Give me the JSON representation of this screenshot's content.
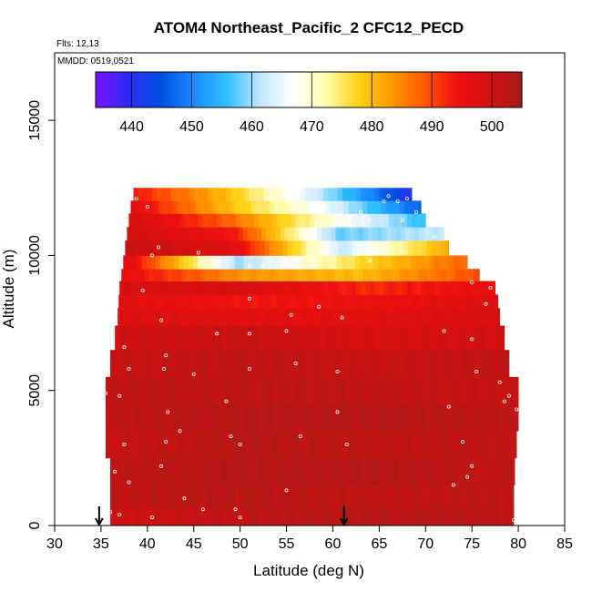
{
  "chart_data": {
    "type": "heatmap",
    "title": "ATOM4 Northeast_Pacific_2 CFC12_PECD",
    "subtitle_lines": [
      "Flts: 12,13",
      "MMDD: 0519,0521"
    ],
    "xlabel": "Latitude (deg N)",
    "ylabel": "Altitude (m)",
    "xlim": [
      30,
      85
    ],
    "ylim": [
      0,
      17500
    ],
    "xticks": [
      "30",
      "35",
      "40",
      "45",
      "50",
      "55",
      "60",
      "65",
      "70",
      "75",
      "80",
      "85"
    ],
    "xtick_values": [
      30,
      35,
      40,
      45,
      50,
      55,
      60,
      65,
      70,
      75,
      80,
      85
    ],
    "yticks": [
      "0",
      "5000",
      "10000",
      "15000"
    ],
    "ytick_values": [
      0,
      5000,
      10000,
      15000
    ],
    "colorbar": {
      "range": [
        434,
        505
      ],
      "ticks": [
        "440",
        "450",
        "460",
        "470",
        "480",
        "490",
        "500"
      ],
      "tick_values": [
        440,
        450,
        460,
        470,
        480,
        490,
        500
      ],
      "colors": [
        "#7a12ff",
        "#2b2bf0",
        "#0050e0",
        "#1a8cff",
        "#30c0ff",
        "#bfe6ff",
        "#ffffff",
        "#fffbb0",
        "#ffd21a",
        "#ff9a00",
        "#ff5a00",
        "#f01010",
        "#d41010",
        "#a61a1a"
      ]
    },
    "curtain": {
      "bins": [
        {
          "alt": 300,
          "lat_min": 36.0,
          "lat_max": 79.5,
          "values": [
            500,
            502,
            503,
            502
          ]
        },
        {
          "alt": 1000,
          "lat_min": 36.0,
          "lat_max": 79.5,
          "values": [
            502,
            503,
            502,
            502
          ]
        },
        {
          "alt": 2000,
          "lat_min": 36.0,
          "lat_max": 79.6,
          "values": [
            502,
            503,
            503,
            502
          ]
        },
        {
          "alt": 3000,
          "lat_min": 35.5,
          "lat_max": 79.8,
          "values": [
            501,
            503,
            502,
            502
          ]
        },
        {
          "alt": 4000,
          "lat_min": 35.5,
          "lat_max": 80.0,
          "values": [
            502,
            503,
            503,
            502
          ]
        },
        {
          "alt": 5000,
          "lat_min": 35.5,
          "lat_max": 80.0,
          "values": [
            502,
            502,
            502,
            501
          ]
        },
        {
          "alt": 6000,
          "lat_min": 36.0,
          "lat_max": 79.0,
          "values": [
            501,
            502,
            501,
            502
          ]
        },
        {
          "alt": 7000,
          "lat_min": 36.5,
          "lat_max": 78.5,
          "values": [
            500,
            501,
            499,
            500
          ]
        },
        {
          "alt": 7800,
          "lat_min": 36.8,
          "lat_max": 78.0,
          "values": [
            498,
            497,
            497,
            499
          ]
        },
        {
          "alt": 8300,
          "lat_min": 36.9,
          "lat_max": 77.8,
          "values": [
            497,
            494,
            495,
            498
          ]
        },
        {
          "alt": 8800,
          "lat_min": 37.0,
          "lat_max": 77.5,
          "values": [
            499,
            499,
            492,
            496
          ]
        },
        {
          "alt": 9300,
          "lat_min": 37.2,
          "lat_max": 75.8,
          "values": [
            496,
            484,
            480,
            490
          ]
        },
        {
          "alt": 9700,
          "lat_min": 37.4,
          "lat_max": 74.5,
          "values": [
            499,
            460,
            476,
            488
          ]
        },
        {
          "alt": 10300,
          "lat_min": 37.6,
          "lat_max": 72.5,
          "values": [
            501,
            498,
            462,
            482
          ]
        },
        {
          "alt": 10800,
          "lat_min": 37.8,
          "lat_max": 72.0,
          "values": [
            500,
            494,
            458,
            462
          ]
        },
        {
          "alt": 11300,
          "lat_min": 38.0,
          "lat_max": 70.0,
          "values": [
            500,
            488,
            470,
            455
          ]
        },
        {
          "alt": 11800,
          "lat_min": 38.2,
          "lat_max": 69.5,
          "values": [
            497,
            480,
            466,
            446
          ]
        },
        {
          "alt": 12250,
          "lat_min": 38.5,
          "lat_max": 68.5,
          "values": [
            494,
            480,
            462,
            440
          ]
        }
      ]
    },
    "observations": [
      {
        "lat": 37.5,
        "alt": 6600
      },
      {
        "lat": 38.8,
        "alt": 12100
      },
      {
        "lat": 40.0,
        "alt": 11800
      },
      {
        "lat": 41.2,
        "alt": 10300
      },
      {
        "lat": 40.5,
        "alt": 10000
      },
      {
        "lat": 39.5,
        "alt": 8700
      },
      {
        "lat": 41.5,
        "alt": 7600
      },
      {
        "lat": 42.0,
        "alt": 6300
      },
      {
        "lat": 41.8,
        "alt": 5800
      },
      {
        "lat": 38.0,
        "alt": 5800
      },
      {
        "lat": 37.0,
        "alt": 4800
      },
      {
        "lat": 42.2,
        "alt": 4200
      },
      {
        "lat": 43.5,
        "alt": 3500
      },
      {
        "lat": 42.0,
        "alt": 3100
      },
      {
        "lat": 37.5,
        "alt": 3000
      },
      {
        "lat": 36.5,
        "alt": 2000
      },
      {
        "lat": 38.0,
        "alt": 1600
      },
      {
        "lat": 41.5,
        "alt": 2200
      },
      {
        "lat": 44.0,
        "alt": 1000
      },
      {
        "lat": 46.0,
        "alt": 600
      },
      {
        "lat": 49.5,
        "alt": 600
      },
      {
        "lat": 50.0,
        "alt": 300
      },
      {
        "lat": 55.0,
        "alt": 1300
      },
      {
        "lat": 61.5,
        "alt": 3000
      },
      {
        "lat": 60.5,
        "alt": 4200
      },
      {
        "lat": 60.5,
        "alt": 5700
      },
      {
        "lat": 56.0,
        "alt": 6000
      },
      {
        "lat": 51.0,
        "alt": 5800
      },
      {
        "lat": 45.0,
        "alt": 5600
      },
      {
        "lat": 48.5,
        "alt": 4600
      },
      {
        "lat": 49.0,
        "alt": 3300
      },
      {
        "lat": 50.0,
        "alt": 3000
      },
      {
        "lat": 56.5,
        "alt": 3300
      },
      {
        "lat": 47.5,
        "alt": 7100
      },
      {
        "lat": 51.0,
        "alt": 7100
      },
      {
        "lat": 55.5,
        "alt": 7800
      },
      {
        "lat": 55.0,
        "alt": 7200
      },
      {
        "lat": 58.5,
        "alt": 8100
      },
      {
        "lat": 61.0,
        "alt": 7700
      },
      {
        "lat": 64.0,
        "alt": 9800
      },
      {
        "lat": 55.5,
        "alt": 9800
      },
      {
        "lat": 52.5,
        "alt": 9600
      },
      {
        "lat": 53.5,
        "alt": 9800
      },
      {
        "lat": 51.0,
        "alt": 9600
      },
      {
        "lat": 45.5,
        "alt": 10100
      },
      {
        "lat": 45.8,
        "alt": 9800
      },
      {
        "lat": 51.0,
        "alt": 8400
      },
      {
        "lat": 64.0,
        "alt": 11300
      },
      {
        "lat": 63.0,
        "alt": 11600
      },
      {
        "lat": 65.5,
        "alt": 12000
      },
      {
        "lat": 66.0,
        "alt": 12200
      },
      {
        "lat": 67.0,
        "alt": 12000
      },
      {
        "lat": 68.0,
        "alt": 12100
      },
      {
        "lat": 69.0,
        "alt": 11600
      },
      {
        "lat": 70.5,
        "alt": 11200
      },
      {
        "lat": 71.0,
        "alt": 10700
      },
      {
        "lat": 72.0,
        "alt": 7200
      },
      {
        "lat": 75.0,
        "alt": 6900
      },
      {
        "lat": 76.5,
        "alt": 8200
      },
      {
        "lat": 77.0,
        "alt": 8800
      },
      {
        "lat": 75.5,
        "alt": 5700
      },
      {
        "lat": 78.0,
        "alt": 5300
      },
      {
        "lat": 79.0,
        "alt": 4800
      },
      {
        "lat": 78.5,
        "alt": 4600
      },
      {
        "lat": 72.5,
        "alt": 4400
      },
      {
        "lat": 74.0,
        "alt": 3100
      },
      {
        "lat": 75.0,
        "alt": 2200
      },
      {
        "lat": 74.5,
        "alt": 1800
      },
      {
        "lat": 73.0,
        "alt": 1500
      },
      {
        "lat": 80.0,
        "alt": 1700
      },
      {
        "lat": 79.5,
        "alt": 200
      },
      {
        "lat": 36.0,
        "alt": 500
      },
      {
        "lat": 37.0,
        "alt": 400
      },
      {
        "lat": 40.5,
        "alt": 300
      },
      {
        "lat": 35.5,
        "alt": 4900
      },
      {
        "lat": 79.8,
        "alt": 4300
      },
      {
        "lat": 75.0,
        "alt": 9000
      },
      {
        "lat": 67.5,
        "alt": 11300
      }
    ],
    "annotations": [
      {
        "type": "arrow-down",
        "lat": 34.8,
        "alt": 500
      },
      {
        "type": "arrow-down",
        "lat": 61.2,
        "alt": 500
      }
    ]
  }
}
